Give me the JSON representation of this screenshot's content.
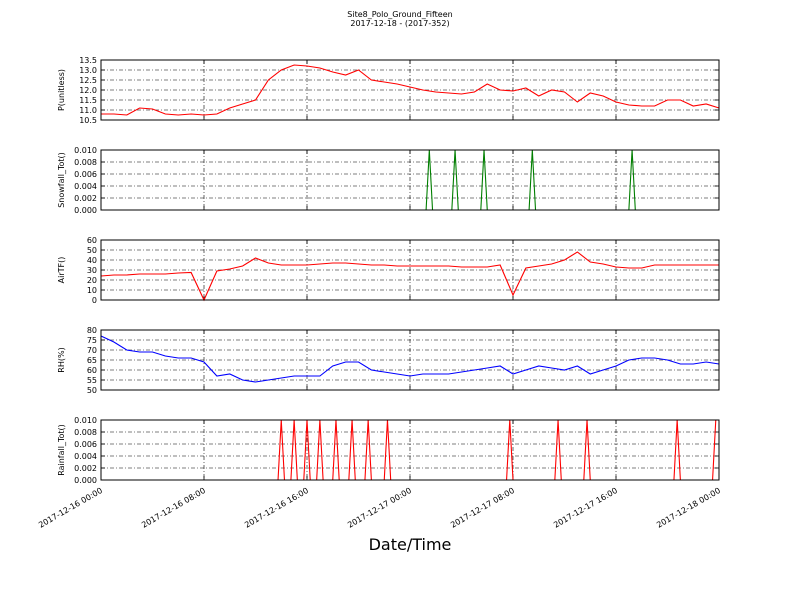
{
  "chart_data": [
    {
      "type": "line",
      "title": "Site8_Polo_Ground_Fifteen",
      "subtitle": "2017-12-18 - (2017-352)",
      "y_label": "P(unitless)",
      "color": "#ff0000",
      "grid": true,
      "xlim": [
        "2017-12-16 00:00",
        "2017-12-18 00:00"
      ],
      "ylim": [
        10.5,
        13.5
      ],
      "yticks": [
        10.5,
        {
          "value": 11,
          "label": "11.0"
        },
        11.5,
        {
          "value": 12,
          "label": "12.0"
        },
        12.5,
        {
          "value": 13,
          "label": "13.0"
        },
        13.5
      ],
      "x": [
        "2017-12-16 00:00",
        "2017-12-16 01:00",
        "2017-12-16 02:00",
        "2017-12-16 03:00",
        "2017-12-16 04:00",
        "2017-12-16 05:00",
        "2017-12-16 06:00",
        "2017-12-16 07:00",
        "2017-12-16 08:00",
        "2017-12-16 09:00",
        "2017-12-16 10:00",
        "2017-12-16 11:00",
        "2017-12-16 12:00",
        "2017-12-16 13:00",
        "2017-12-16 14:00",
        "2017-12-16 15:00",
        "2017-12-16 16:00",
        "2017-12-16 17:00",
        "2017-12-16 18:00",
        "2017-12-16 19:00",
        "2017-12-16 20:00",
        "2017-12-16 21:00",
        "2017-12-16 22:00",
        "2017-12-16 23:00",
        "2017-12-17 00:00",
        "2017-12-17 01:00",
        "2017-12-17 02:00",
        "2017-12-17 03:00",
        "2017-12-17 04:00",
        "2017-12-17 05:00",
        "2017-12-17 06:00",
        "2017-12-17 07:00",
        "2017-12-17 08:00",
        "2017-12-17 09:00",
        "2017-12-17 10:00",
        "2017-12-17 11:00",
        "2017-12-17 12:00",
        "2017-12-17 13:00",
        "2017-12-17 14:00",
        "2017-12-17 15:00",
        "2017-12-17 16:00",
        "2017-12-17 17:00",
        "2017-12-17 18:00",
        "2017-12-17 19:00",
        "2017-12-17 20:00",
        "2017-12-17 21:00",
        "2017-12-17 22:00",
        "2017-12-17 23:00",
        "2017-12-18 00:00"
      ],
      "values": [
        10.8,
        10.8,
        10.75,
        11.1,
        11.05,
        10.8,
        10.75,
        10.8,
        10.75,
        10.8,
        11.1,
        11.3,
        11.5,
        12.5,
        13.0,
        13.25,
        13.2,
        13.1,
        12.9,
        12.75,
        13.0,
        12.5,
        12.4,
        12.3,
        12.15,
        12.0,
        11.9,
        11.85,
        11.8,
        11.9,
        12.3,
        12.0,
        11.95,
        12.1,
        11.7,
        12.0,
        11.9,
        11.4,
        11.85,
        11.7,
        11.4,
        11.25,
        11.2,
        11.2,
        11.5,
        11.5,
        11.2,
        11.3,
        11.1
      ]
    },
    {
      "type": "line",
      "y_label": "Snowfall_Tot()",
      "color": "#007f00",
      "grid": true,
      "xlim": [
        "2017-12-16 00:00",
        "2017-12-18 00:00"
      ],
      "ylim": [
        0,
        0.01
      ],
      "yticks": [
        {
          "value": 0,
          "label": "0.000"
        },
        0.002,
        0.004,
        0.006,
        0.008,
        {
          "value": 0.01,
          "label": "0.010"
        }
      ],
      "x": [
        "2017-12-16 00:00",
        "2017-12-17 01:15",
        "2017-12-17 01:30",
        "2017-12-17 01:45",
        "2017-12-17 03:15",
        "2017-12-17 03:30",
        "2017-12-17 03:45",
        "2017-12-17 05:30",
        "2017-12-17 05:45",
        "2017-12-17 06:00",
        "2017-12-17 09:15",
        "2017-12-17 09:30",
        "2017-12-17 09:45",
        "2017-12-17 17:00",
        "2017-12-17 17:15",
        "2017-12-17 17:30",
        "2017-12-18 00:00"
      ],
      "values": [
        0,
        0,
        0.01,
        0,
        0,
        0.01,
        0,
        0,
        0.01,
        0,
        0,
        0.01,
        0,
        0,
        0.01,
        0,
        0
      ]
    },
    {
      "type": "line",
      "y_label": "AirTF()",
      "color": "#ff0000",
      "grid": true,
      "xlim": [
        "2017-12-16 00:00",
        "2017-12-18 00:00"
      ],
      "ylim": [
        0,
        60
      ],
      "yticks": [
        0,
        10,
        20,
        30,
        40,
        50,
        60
      ],
      "x": [
        "2017-12-16 00:00",
        "2017-12-16 01:00",
        "2017-12-16 02:00",
        "2017-12-16 03:00",
        "2017-12-16 04:00",
        "2017-12-16 05:00",
        "2017-12-16 06:00",
        "2017-12-16 07:00",
        "2017-12-16 08:00",
        "2017-12-16 09:00",
        "2017-12-16 10:00",
        "2017-12-16 11:00",
        "2017-12-16 12:00",
        "2017-12-16 13:00",
        "2017-12-16 14:00",
        "2017-12-16 15:00",
        "2017-12-16 16:00",
        "2017-12-16 17:00",
        "2017-12-16 18:00",
        "2017-12-16 19:00",
        "2017-12-16 20:00",
        "2017-12-16 21:00",
        "2017-12-16 22:00",
        "2017-12-16 23:00",
        "2017-12-17 00:00",
        "2017-12-17 01:00",
        "2017-12-17 02:00",
        "2017-12-17 03:00",
        "2017-12-17 04:00",
        "2017-12-17 05:00",
        "2017-12-17 06:00",
        "2017-12-17 07:00",
        "2017-12-17 08:00",
        "2017-12-17 09:00",
        "2017-12-17 10:00",
        "2017-12-17 11:00",
        "2017-12-17 12:00",
        "2017-12-17 13:00",
        "2017-12-17 14:00",
        "2017-12-17 15:00",
        "2017-12-17 16:00",
        "2017-12-17 17:00",
        "2017-12-17 18:00",
        "2017-12-17 19:00",
        "2017-12-17 20:00",
        "2017-12-17 21:00",
        "2017-12-17 22:00",
        "2017-12-17 23:00",
        "2017-12-18 00:00"
      ],
      "values": [
        24,
        25,
        25,
        26,
        26,
        26,
        27,
        27.5,
        0,
        29,
        31,
        34,
        42,
        37,
        35,
        35,
        35,
        36,
        37,
        37,
        36,
        35,
        35,
        34,
        34,
        34,
        34,
        34,
        33,
        33,
        33,
        35,
        5,
        32,
        34,
        36,
        40,
        48,
        38,
        36,
        33,
        32,
        32,
        35,
        35,
        35,
        35,
        35,
        35
      ]
    },
    {
      "type": "line",
      "y_label": "RH(%)",
      "color": "#0000ff",
      "grid": true,
      "xlim": [
        "2017-12-16 00:00",
        "2017-12-18 00:00"
      ],
      "ylim": [
        50,
        80
      ],
      "yticks": [
        50,
        55,
        60,
        65,
        70,
        75,
        80
      ],
      "x": [
        "2017-12-16 00:00",
        "2017-12-16 01:00",
        "2017-12-16 02:00",
        "2017-12-16 03:00",
        "2017-12-16 04:00",
        "2017-12-16 05:00",
        "2017-12-16 06:00",
        "2017-12-16 07:00",
        "2017-12-16 08:00",
        "2017-12-16 09:00",
        "2017-12-16 10:00",
        "2017-12-16 11:00",
        "2017-12-16 12:00",
        "2017-12-16 13:00",
        "2017-12-16 14:00",
        "2017-12-16 15:00",
        "2017-12-16 16:00",
        "2017-12-16 17:00",
        "2017-12-16 18:00",
        "2017-12-16 19:00",
        "2017-12-16 20:00",
        "2017-12-16 21:00",
        "2017-12-16 22:00",
        "2017-12-16 23:00",
        "2017-12-17 00:00",
        "2017-12-17 01:00",
        "2017-12-17 02:00",
        "2017-12-17 03:00",
        "2017-12-17 04:00",
        "2017-12-17 05:00",
        "2017-12-17 06:00",
        "2017-12-17 07:00",
        "2017-12-17 08:00",
        "2017-12-17 09:00",
        "2017-12-17 10:00",
        "2017-12-17 11:00",
        "2017-12-17 12:00",
        "2017-12-17 13:00",
        "2017-12-17 14:00",
        "2017-12-17 15:00",
        "2017-12-17 16:00",
        "2017-12-17 17:00",
        "2017-12-17 18:00",
        "2017-12-17 19:00",
        "2017-12-17 20:00",
        "2017-12-17 21:00",
        "2017-12-17 22:00",
        "2017-12-17 23:00",
        "2017-12-18 00:00"
      ],
      "values": [
        77,
        74,
        70,
        69,
        69,
        67,
        66,
        66,
        64,
        57,
        58,
        55,
        54,
        55,
        56,
        57,
        57,
        57,
        62,
        64,
        64,
        60,
        59,
        58,
        57,
        58,
        58,
        58,
        59,
        60,
        61,
        62,
        58,
        60,
        62,
        61,
        60,
        62,
        58,
        60,
        62,
        65,
        66,
        66,
        65,
        63,
        63,
        64,
        63
      ]
    },
    {
      "type": "line",
      "y_label": "Rainfall_Tot()",
      "x_label": "Date/Time",
      "color": "#ff0000",
      "grid": true,
      "xlim": [
        "2017-12-16 00:00",
        "2017-12-18 00:00"
      ],
      "xticks": [
        {
          "value": "2017-12-16 00:00",
          "label": "2017-12-16 00:00"
        },
        {
          "value": "2017-12-16 08:00",
          "label": "2017-12-16 08:00"
        },
        {
          "value": "2017-12-16 16:00",
          "label": "2017-12-16 16:00"
        },
        {
          "value": "2017-12-17 00:00",
          "label": "2017-12-17 00:00"
        },
        {
          "value": "2017-12-17 08:00",
          "label": "2017-12-17 08:00"
        },
        {
          "value": "2017-12-17 16:00",
          "label": "2017-12-17 16:00"
        },
        {
          "value": "2017-12-18 00:00",
          "label": "2017-12-18 00:00"
        }
      ],
      "ylim": [
        0,
        0.01
      ],
      "yticks": [
        {
          "value": 0,
          "label": "0.000"
        },
        0.002,
        0.004,
        0.006,
        0.008,
        {
          "value": 0.01,
          "label": "0.010"
        }
      ],
      "x": [
        "2017-12-16 00:00",
        "2017-12-16 13:45",
        "2017-12-16 14:00",
        "2017-12-16 14:15",
        "2017-12-16 14:45",
        "2017-12-16 15:00",
        "2017-12-16 15:15",
        "2017-12-16 15:45",
        "2017-12-16 16:00",
        "2017-12-16 16:15",
        "2017-12-16 16:45",
        "2017-12-16 17:00",
        "2017-12-16 17:15",
        "2017-12-16 18:00",
        "2017-12-16 18:15",
        "2017-12-16 18:30",
        "2017-12-16 19:15",
        "2017-12-16 19:30",
        "2017-12-16 19:45",
        "2017-12-16 20:30",
        "2017-12-16 20:45",
        "2017-12-16 21:00",
        "2017-12-16 22:00",
        "2017-12-16 22:15",
        "2017-12-16 22:30",
        "2017-12-17 07:30",
        "2017-12-17 07:45",
        "2017-12-17 08:00",
        "2017-12-17 11:15",
        "2017-12-17 11:30",
        "2017-12-17 11:45",
        "2017-12-17 13:30",
        "2017-12-17 13:45",
        "2017-12-17 14:00",
        "2017-12-17 20:30",
        "2017-12-17 20:45",
        "2017-12-17 21:00",
        "2017-12-17 23:30",
        "2017-12-17 23:45",
        "2017-12-18 00:00"
      ],
      "values": [
        0,
        0,
        0.01,
        0,
        0,
        0.01,
        0,
        0,
        0.01,
        0,
        0,
        0.01,
        0,
        0,
        0.01,
        0,
        0,
        0.01,
        0,
        0,
        0.01,
        0,
        0,
        0.01,
        0,
        0,
        0.01,
        0,
        0,
        0.01,
        0,
        0,
        0.01,
        0,
        0,
        0.01,
        0,
        0,
        0.01,
        0.01
      ]
    }
  ]
}
